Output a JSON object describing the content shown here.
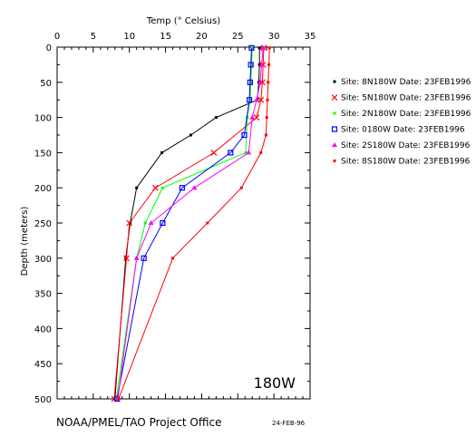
{
  "chart_data": {
    "type": "line",
    "title": "",
    "xlabel": "Temp (° Celsius)",
    "ylabel": "Depth (meters)",
    "xlim": [
      0,
      35
    ],
    "ylim": [
      500,
      0
    ],
    "xticks": [
      0,
      5,
      10,
      15,
      20,
      25,
      30,
      35
    ],
    "yticks": [
      0,
      50,
      100,
      150,
      200,
      250,
      300,
      350,
      400,
      450,
      500
    ],
    "grid": false,
    "legend_position": "right",
    "series": [
      {
        "name": "Site: 8N180W  Date: 23FEB1996",
        "color": "#000000",
        "marker": "dot",
        "depths": [
          1,
          25,
          50,
          75,
          100,
          125,
          150,
          200,
          250,
          300,
          500
        ],
        "values": [
          28.0,
          28.0,
          27.9,
          27.7,
          22.0,
          18.5,
          14.5,
          11.0,
          10.1,
          9.5,
          8.0
        ]
      },
      {
        "name": "Site: 5N180W  Date: 23FEB1996",
        "color": "#ff0000",
        "marker": "x",
        "depths": [
          1,
          25,
          50,
          75,
          100,
          150,
          200,
          250,
          300,
          500
        ],
        "values": [
          28.6,
          28.5,
          28.4,
          28.2,
          27.6,
          21.7,
          13.6,
          10.0,
          9.6,
          7.9
        ]
      },
      {
        "name": "Site: 2N180W  Date: 23FEB1996",
        "color": "#00ff00",
        "marker": "dot",
        "depths": [
          1,
          25,
          50,
          75,
          100,
          150,
          200,
          250,
          300,
          500
        ],
        "values": [
          27.0,
          26.9,
          26.8,
          26.7,
          26.3,
          26.1,
          14.6,
          12.2,
          11.0,
          8.2
        ]
      },
      {
        "name": "Site: 0180W   Date: 23FEB1996",
        "color": "#0000ff",
        "marker": "square",
        "depths": [
          1,
          25,
          50,
          75,
          125,
          150,
          200,
          250,
          300,
          500
        ],
        "values": [
          26.9,
          26.8,
          26.7,
          26.6,
          25.9,
          24.0,
          17.3,
          14.6,
          12.0,
          8.3
        ]
      },
      {
        "name": "Site: 2S180W  Date: 23FEB1996",
        "color": "#ff00ff",
        "marker": "triangle",
        "depths": [
          1,
          25,
          50,
          75,
          100,
          150,
          200,
          250,
          300,
          500
        ],
        "values": [
          28.5,
          28.3,
          28.1,
          27.6,
          27.0,
          26.5,
          19.0,
          13.0,
          11.0,
          8.4
        ]
      },
      {
        "name": "Site: 8S180W  Date: 23FEB1996",
        "color": "#ff0000",
        "marker": "dot",
        "depths": [
          1,
          25,
          50,
          75,
          100,
          125,
          150,
          200,
          250,
          300,
          500
        ],
        "values": [
          29.4,
          29.3,
          29.2,
          29.1,
          29.0,
          28.9,
          28.2,
          25.5,
          20.8,
          16.0,
          8.5
        ]
      }
    ],
    "annotations": {
      "location": "180W",
      "footer": "NOAA/PMEL/TAO Project Office",
      "date_stamp": "24-FEB-96"
    }
  }
}
